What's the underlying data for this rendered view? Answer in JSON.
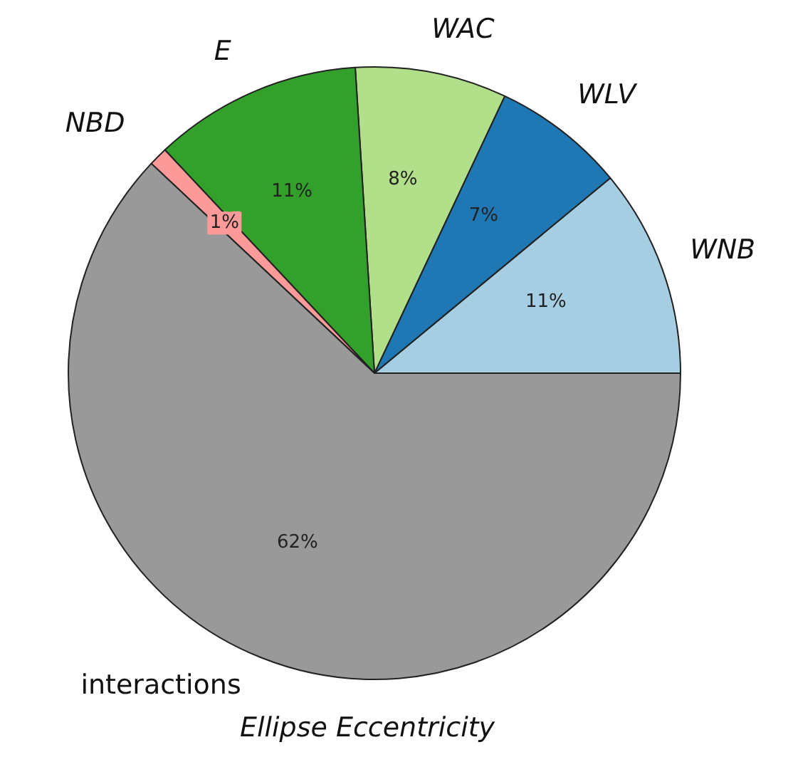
{
  "chart_data": {
    "type": "pie",
    "title": "Ellipse Eccentricity",
    "categories": [
      "WNB",
      "WLV",
      "WAC",
      "E",
      "NBD",
      "interactions"
    ],
    "values": [
      11,
      7,
      8,
      11,
      1,
      62
    ],
    "value_labels": [
      "11%",
      "7%",
      "8%",
      "11%",
      "1%",
      "62%"
    ],
    "colors": [
      "#a6cee3",
      "#1f78b4",
      "#b2df8a",
      "#33a02c",
      "#fb9a99",
      "#999999"
    ],
    "legend": false
  }
}
